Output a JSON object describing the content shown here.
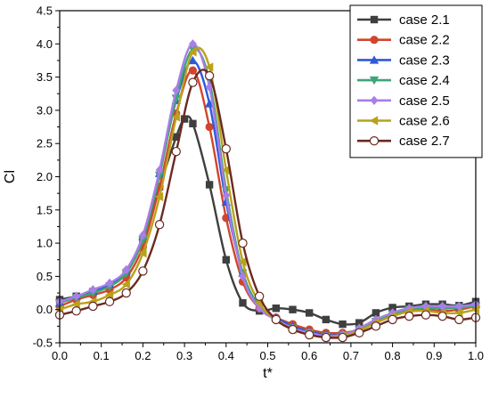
{
  "chart_data": {
    "type": "line",
    "xlabel": "t*",
    "ylabel": "Cl",
    "xlim": [
      0.0,
      1.0
    ],
    "ylim": [
      -0.5,
      4.5
    ],
    "xticks": [
      "0.0",
      "0.1",
      "0.2",
      "0.3",
      "0.4",
      "0.5",
      "0.6",
      "0.7",
      "0.8",
      "0.9",
      "1.0"
    ],
    "yticks": [
      "-0.5",
      "0.0",
      "0.5",
      "1.0",
      "1.5",
      "2.0",
      "2.5",
      "3.0",
      "3.5",
      "4.0",
      "4.5"
    ],
    "grid": false,
    "legend_position": "top-right",
    "series": [
      {
        "name": "case 2.1",
        "color": "#3f3f3f",
        "marker": "square",
        "x": [
          0.0,
          0.04,
          0.08,
          0.12,
          0.16,
          0.2,
          0.24,
          0.28,
          0.3,
          0.32,
          0.36,
          0.4,
          0.44,
          0.48,
          0.52,
          0.56,
          0.6,
          0.64,
          0.68,
          0.72,
          0.76,
          0.8,
          0.84,
          0.88,
          0.92,
          0.96,
          1.0
        ],
        "y": [
          0.15,
          0.2,
          0.27,
          0.35,
          0.55,
          1.05,
          1.85,
          2.6,
          2.87,
          2.8,
          1.88,
          0.75,
          0.1,
          -0.02,
          0.02,
          0.0,
          -0.05,
          -0.15,
          -0.22,
          -0.2,
          -0.05,
          0.03,
          0.05,
          0.08,
          0.08,
          0.06,
          0.12
        ]
      },
      {
        "name": "case 2.2",
        "color": "#d2452c",
        "marker": "circle",
        "x": [
          0.0,
          0.04,
          0.08,
          0.12,
          0.16,
          0.2,
          0.24,
          0.28,
          0.32,
          0.36,
          0.4,
          0.44,
          0.48,
          0.52,
          0.56,
          0.6,
          0.64,
          0.68,
          0.72,
          0.76,
          0.8,
          0.84,
          0.88,
          0.92,
          0.96,
          1.0
        ],
        "y": [
          0.05,
          0.15,
          0.22,
          0.3,
          0.48,
          0.95,
          1.85,
          2.95,
          3.6,
          2.75,
          1.38,
          0.42,
          0.02,
          -0.12,
          -0.22,
          -0.3,
          -0.35,
          -0.35,
          -0.3,
          -0.2,
          -0.08,
          -0.02,
          0.0,
          -0.02,
          0.0,
          0.05
        ]
      },
      {
        "name": "case 2.3",
        "color": "#2e5ad8",
        "marker": "triangle-up",
        "x": [
          0.0,
          0.04,
          0.08,
          0.12,
          0.16,
          0.2,
          0.24,
          0.28,
          0.32,
          0.36,
          0.4,
          0.44,
          0.48,
          0.52,
          0.56,
          0.6,
          0.64,
          0.68,
          0.72,
          0.76,
          0.8,
          0.84,
          0.88,
          0.92,
          0.96,
          1.0
        ],
        "y": [
          0.1,
          0.2,
          0.28,
          0.38,
          0.58,
          1.1,
          2.05,
          3.15,
          3.75,
          3.1,
          1.62,
          0.55,
          0.05,
          -0.12,
          -0.25,
          -0.33,
          -0.38,
          -0.38,
          -0.3,
          -0.18,
          -0.05,
          0.02,
          0.05,
          0.05,
          0.05,
          0.08
        ]
      },
      {
        "name": "case 2.4",
        "color": "#3da576",
        "marker": "triangle-down",
        "x": [
          0.0,
          0.04,
          0.08,
          0.12,
          0.16,
          0.2,
          0.24,
          0.28,
          0.32,
          0.36,
          0.4,
          0.44,
          0.48,
          0.52,
          0.56,
          0.6,
          0.64,
          0.68,
          0.72,
          0.76,
          0.8,
          0.84,
          0.88,
          0.92,
          0.96,
          1.0
        ],
        "y": [
          0.1,
          0.18,
          0.25,
          0.35,
          0.55,
          1.05,
          2.02,
          3.18,
          3.92,
          3.45,
          1.8,
          0.55,
          0.05,
          -0.15,
          -0.28,
          -0.35,
          -0.4,
          -0.38,
          -0.3,
          -0.18,
          -0.07,
          0.0,
          0.02,
          0.02,
          0.03,
          0.05
        ]
      },
      {
        "name": "case 2.5",
        "color": "#a97ee8",
        "marker": "diamond",
        "x": [
          0.0,
          0.04,
          0.08,
          0.12,
          0.16,
          0.2,
          0.24,
          0.28,
          0.32,
          0.36,
          0.4,
          0.44,
          0.48,
          0.52,
          0.56,
          0.6,
          0.64,
          0.68,
          0.72,
          0.76,
          0.8,
          0.84,
          0.88,
          0.92,
          0.96,
          1.0
        ],
        "y": [
          0.12,
          0.2,
          0.3,
          0.4,
          0.6,
          1.12,
          2.1,
          3.3,
          4.0,
          3.35,
          1.72,
          0.5,
          0.02,
          -0.15,
          -0.28,
          -0.35,
          -0.4,
          -0.38,
          -0.28,
          -0.15,
          -0.05,
          0.02,
          0.05,
          0.05,
          0.05,
          0.08
        ]
      },
      {
        "name": "case 2.6",
        "color": "#b9a21a",
        "marker": "triangle-left",
        "x": [
          0.0,
          0.04,
          0.08,
          0.12,
          0.16,
          0.2,
          0.24,
          0.28,
          0.32,
          0.36,
          0.4,
          0.44,
          0.48,
          0.52,
          0.56,
          0.6,
          0.64,
          0.68,
          0.72,
          0.76,
          0.8,
          0.84,
          0.88,
          0.92,
          0.96,
          1.0
        ],
        "y": [
          0.0,
          0.08,
          0.12,
          0.22,
          0.38,
          0.85,
          1.7,
          2.9,
          3.88,
          3.65,
          2.1,
          0.72,
          0.1,
          -0.15,
          -0.3,
          -0.38,
          -0.42,
          -0.4,
          -0.32,
          -0.2,
          -0.1,
          -0.03,
          -0.02,
          -0.05,
          -0.05,
          0.0
        ]
      },
      {
        "name": "case 2.7",
        "color": "#6b2a22",
        "marker": "circle-open",
        "x": [
          0.0,
          0.04,
          0.08,
          0.12,
          0.16,
          0.2,
          0.24,
          0.28,
          0.32,
          0.36,
          0.4,
          0.44,
          0.48,
          0.52,
          0.56,
          0.6,
          0.64,
          0.68,
          0.72,
          0.76,
          0.8,
          0.84,
          0.88,
          0.92,
          0.96,
          1.0
        ],
        "y": [
          -0.08,
          -0.02,
          0.05,
          0.12,
          0.25,
          0.58,
          1.28,
          2.38,
          3.42,
          3.52,
          2.42,
          1.0,
          0.2,
          -0.15,
          -0.3,
          -0.38,
          -0.42,
          -0.42,
          -0.35,
          -0.25,
          -0.15,
          -0.1,
          -0.08,
          -0.1,
          -0.15,
          -0.12
        ]
      }
    ]
  }
}
